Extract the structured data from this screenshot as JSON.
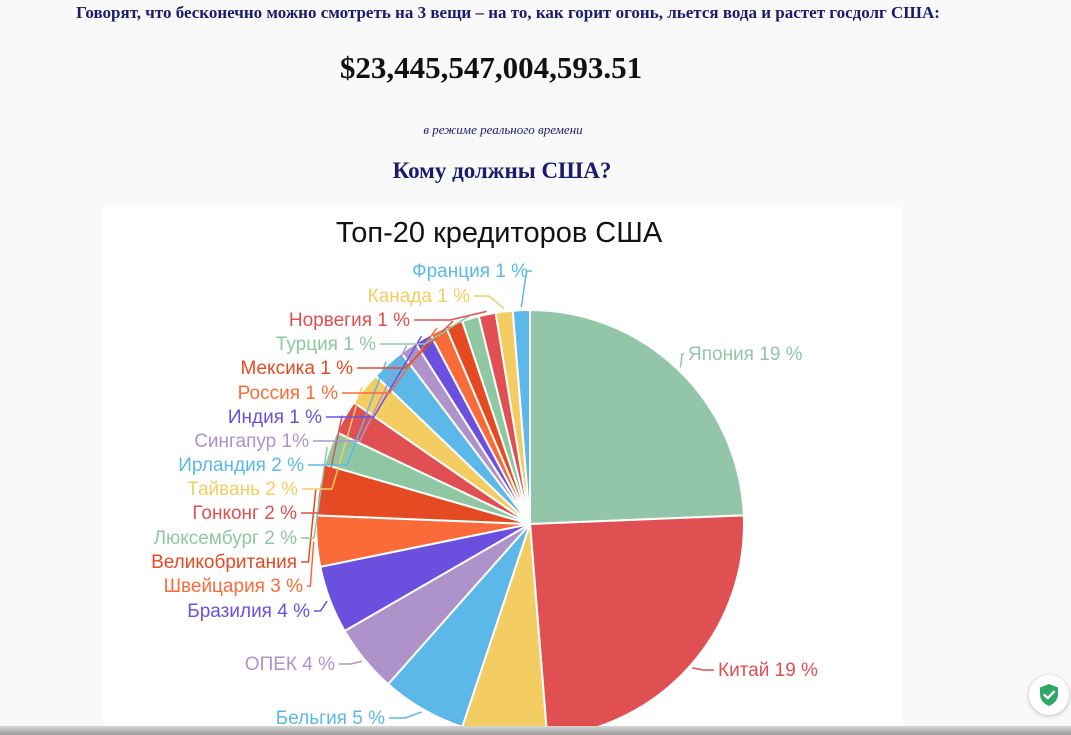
{
  "intro_text": "Говорят, что бесконечно можно смотреть на 3 вещи – на то, как горит огонь, льется вода и растет госдолг США:",
  "debt_amount": "$23,445,547,004,593.51",
  "realtime_note": "в режиме реального времени",
  "question_heading": "Кому должны США?",
  "colors": {
    "text_navy": "#1a1a6e",
    "shield_green": "#2fa866"
  },
  "shield_icon": "shield-check-icon",
  "chart_data": {
    "type": "pie",
    "title": "Топ-20 кредиторов США",
    "slices": [
      {
        "label": "Япония 19 %",
        "value": 19,
        "color": "#93c6a9"
      },
      {
        "label": "Китай 19 %",
        "value": 19,
        "color": "#e04f51"
      },
      {
        "label": "",
        "value": 5,
        "color": "#f3cd62"
      },
      {
        "label": "Бельгия 5 %",
        "value": 5,
        "color": "#5bb8e8"
      },
      {
        "label": "ОПЕК 4 %",
        "value": 4,
        "color": "#ae93cb"
      },
      {
        "label": "Бразилия 4 %",
        "value": 4,
        "color": "#6b50e0"
      },
      {
        "label": "Швейцария 3 %",
        "value": 3,
        "color": "#fb6b3a"
      },
      {
        "label": "Великобритания",
        "value": 3,
        "color": "#e64a22"
      },
      {
        "label": "Люксембург 2 %",
        "value": 2,
        "color": "#8ec7a2"
      },
      {
        "label": "Гонконг 2 %",
        "value": 2,
        "color": "#e04f51"
      },
      {
        "label": "Тайвань 2 %",
        "value": 2,
        "color": "#f3cd62"
      },
      {
        "label": "Ирландия 2 %",
        "value": 2,
        "color": "#5bb8e8"
      },
      {
        "label": "Сингапур 1%",
        "value": 1,
        "color": "#ae93cb"
      },
      {
        "label": "Индия 1 %",
        "value": 1,
        "color": "#6b50e0"
      },
      {
        "label": "Россия 1 %",
        "value": 1,
        "color": "#fb6b3a"
      },
      {
        "label": "Мексика 1 %",
        "value": 1,
        "color": "#e64a22"
      },
      {
        "label": "Турция 1 %",
        "value": 1,
        "color": "#8ec7a2"
      },
      {
        "label": "Норвегия 1 %",
        "value": 1,
        "color": "#e04f51"
      },
      {
        "label": "Канада 1 %",
        "value": 1,
        "color": "#f3cd62"
      },
      {
        "label": "Франция 1 %",
        "value": 1,
        "color": "#5bb8e8"
      }
    ]
  }
}
